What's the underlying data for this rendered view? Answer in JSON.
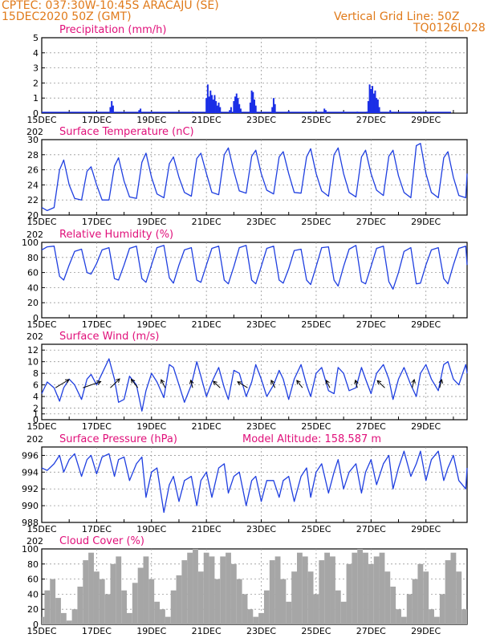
{
  "header": {
    "line1": "CPTEC:   037:30W-10:45S   ARACAJU (SE)",
    "line2": "15DEC2020 50Z (GMT)",
    "grid_note": "Vertical Grid Line: 50Z",
    "code": "TQ0126L028",
    "year_stub": "202"
  },
  "colors": {
    "header": "#e07a1a",
    "title": "#e0107a",
    "line": "#1f3fe0",
    "bar": "#1a2ee6",
    "cloud": "#a6a6a6",
    "arrow": "#000000"
  },
  "x_labels": [
    "15DEC",
    "17DEC",
    "19DEC",
    "21DEC",
    "23DEC",
    "25DEC",
    "27DEC",
    "29DEC"
  ],
  "chart_data": [
    {
      "id": "precip",
      "type": "bar",
      "title": "Precipitation (mm/h)",
      "x_unit": "days since 15DEC 00Z",
      "xlim": [
        0,
        15.5
      ],
      "ylim": [
        0,
        5
      ],
      "yticks": [
        0,
        1,
        2,
        3,
        4,
        5
      ],
      "x": [
        2.5,
        2.55,
        2.6,
        3.55,
        3.6,
        4.0,
        5.5,
        6.0,
        6.05,
        6.1,
        6.15,
        6.2,
        6.25,
        6.3,
        6.35,
        6.4,
        6.45,
        6.5,
        6.85,
        6.9,
        7.0,
        7.05,
        7.1,
        7.15,
        7.2,
        7.25,
        7.6,
        7.65,
        7.7,
        7.75,
        7.8,
        8.4,
        8.45,
        8.5,
        9.0,
        9.8,
        10.3,
        10.35,
        11.0,
        11.5,
        11.85,
        11.9,
        11.95,
        12.0,
        12.05,
        12.1,
        12.15,
        12.2,
        12.25,
        12.3,
        12.7
      ],
      "values": [
        0.4,
        0.8,
        0.5,
        0.2,
        0.3,
        0.1,
        0.1,
        1.0,
        1.9,
        1.1,
        1.5,
        1.2,
        0.9,
        1.2,
        0.8,
        0.5,
        0.7,
        0.4,
        0.2,
        0.4,
        0.8,
        1.1,
        1.3,
        1.0,
        0.6,
        0.3,
        0.7,
        1.5,
        1.4,
        0.9,
        0.5,
        0.4,
        1.0,
        0.6,
        0.15,
        0.1,
        0.3,
        0.2,
        0.1,
        0.1,
        0.1,
        0.8,
        1.9,
        1.6,
        1.8,
        1.3,
        1.5,
        1.0,
        0.9,
        0.4,
        0.2
      ]
    },
    {
      "id": "temp",
      "type": "line",
      "title": "Surface Temperature (nC)",
      "xlim": [
        0,
        15.5
      ],
      "ylim": [
        20,
        30
      ],
      "yticks": [
        20,
        22,
        24,
        26,
        28,
        30
      ],
      "x": [
        0,
        0.2,
        0.45,
        0.65,
        0.8,
        1,
        1.2,
        1.45,
        1.65,
        1.8,
        2,
        2.2,
        2.45,
        2.65,
        2.8,
        3,
        3.2,
        3.45,
        3.65,
        3.8,
        4,
        4.2,
        4.45,
        4.65,
        4.8,
        5,
        5.2,
        5.45,
        5.65,
        5.8,
        6,
        6.2,
        6.45,
        6.65,
        6.8,
        7,
        7.2,
        7.45,
        7.65,
        7.8,
        8,
        8.2,
        8.45,
        8.65,
        8.8,
        9,
        9.2,
        9.45,
        9.65,
        9.8,
        10,
        10.2,
        10.45,
        10.65,
        10.8,
        11,
        11.2,
        11.45,
        11.65,
        11.8,
        12,
        12.2,
        12.45,
        12.65,
        12.8,
        13,
        13.2,
        13.45,
        13.65,
        13.8,
        14,
        14.2,
        14.45,
        14.65,
        14.8,
        15,
        15.2,
        15.45,
        15.5
      ],
      "values": [
        21,
        20.6,
        21,
        26,
        27.3,
        24,
        22.2,
        22,
        25.8,
        26.4,
        24,
        22,
        22,
        26.5,
        27.6,
        24.5,
        22.4,
        22.2,
        27,
        28.2,
        25,
        22.8,
        22.3,
        26.8,
        27.7,
        25,
        23,
        22.5,
        27.5,
        28.2,
        25.5,
        23,
        22.7,
        28,
        28.9,
        25.8,
        23.2,
        22.9,
        27.8,
        28.6,
        25.5,
        23.3,
        22.8,
        27.7,
        28.4,
        25.5,
        23,
        22.9,
        27.7,
        28.8,
        25.5,
        23.2,
        22.5,
        28,
        28.9,
        25.5,
        23,
        22.4,
        27.7,
        28.6,
        25.5,
        23.3,
        22.6,
        27.8,
        28.6,
        25.2,
        23,
        22.3,
        29.2,
        29.5,
        25.5,
        23,
        22.3,
        27.6,
        28.4,
        25,
        22.6,
        22.3,
        25.5
      ]
    },
    {
      "id": "rh",
      "type": "line",
      "title": "Relative Humidity (%)",
      "xlim": [
        0,
        15.5
      ],
      "ylim": [
        0,
        100
      ],
      "yticks": [
        0,
        20,
        40,
        60,
        80,
        100
      ],
      "x": [
        0,
        0.2,
        0.45,
        0.65,
        0.8,
        1,
        1.2,
        1.45,
        1.65,
        1.8,
        2,
        2.2,
        2.45,
        2.65,
        2.8,
        3,
        3.2,
        3.45,
        3.65,
        3.8,
        4,
        4.2,
        4.45,
        4.65,
        4.8,
        5,
        5.2,
        5.45,
        5.65,
        5.8,
        6,
        6.2,
        6.45,
        6.65,
        6.8,
        7,
        7.2,
        7.45,
        7.65,
        7.8,
        8,
        8.2,
        8.45,
        8.65,
        8.8,
        9,
        9.2,
        9.45,
        9.65,
        9.8,
        10,
        10.2,
        10.45,
        10.65,
        10.8,
        11,
        11.2,
        11.45,
        11.65,
        11.8,
        12,
        12.2,
        12.45,
        12.65,
        12.8,
        13,
        13.2,
        13.45,
        13.65,
        13.8,
        14,
        14.2,
        14.45,
        14.65,
        14.8,
        15,
        15.2,
        15.45,
        15.5
      ],
      "values": [
        90,
        94,
        95,
        55,
        50,
        70,
        88,
        91,
        60,
        58,
        72,
        90,
        93,
        52,
        50,
        70,
        92,
        95,
        52,
        47,
        70,
        93,
        96,
        53,
        46,
        70,
        90,
        93,
        50,
        47,
        70,
        92,
        95,
        50,
        45,
        68,
        93,
        96,
        50,
        45,
        68,
        92,
        95,
        50,
        46,
        65,
        89,
        91,
        50,
        44,
        68,
        93,
        94,
        50,
        42,
        68,
        91,
        96,
        48,
        45,
        68,
        92,
        95,
        48,
        38,
        60,
        88,
        93,
        45,
        46,
        70,
        90,
        93,
        52,
        45,
        70,
        92,
        95,
        70
      ]
    },
    {
      "id": "wind",
      "type": "line",
      "title": "Surface Wind (m/s)",
      "xlim": [
        0,
        15.5
      ],
      "ylim": [
        0,
        13
      ],
      "yticks": [
        0,
        1,
        2,
        4,
        6,
        8,
        10,
        12
      ],
      "x": [
        0,
        0.2,
        0.45,
        0.65,
        0.8,
        1,
        1.2,
        1.45,
        1.65,
        1.8,
        2,
        2.2,
        2.45,
        2.65,
        2.8,
        3,
        3.2,
        3.45,
        3.65,
        3.8,
        4,
        4.2,
        4.45,
        4.65,
        4.8,
        5,
        5.2,
        5.45,
        5.65,
        5.8,
        6,
        6.2,
        6.45,
        6.65,
        6.8,
        7,
        7.2,
        7.45,
        7.65,
        7.8,
        8,
        8.2,
        8.45,
        8.65,
        8.8,
        9,
        9.2,
        9.45,
        9.65,
        9.8,
        10,
        10.2,
        10.45,
        10.65,
        10.8,
        11,
        11.2,
        11.45,
        11.65,
        11.8,
        12,
        12.2,
        12.45,
        12.65,
        12.8,
        13,
        13.2,
        13.45,
        13.65,
        13.8,
        14,
        14.2,
        14.45,
        14.65,
        14.8,
        15,
        15.2,
        15.45,
        15.5
      ],
      "values": [
        4.5,
        6.5,
        5.5,
        3.2,
        5.5,
        7,
        6,
        3.5,
        7,
        7.8,
        6,
        8,
        10.5,
        7,
        3,
        3.5,
        7.5,
        6,
        1.5,
        5,
        8,
        6.5,
        3.8,
        9.5,
        9,
        6,
        3,
        6,
        10,
        7.5,
        4,
        6.5,
        9,
        5.5,
        3.5,
        8.5,
        8,
        4,
        6.5,
        9.5,
        7,
        4,
        6,
        8.5,
        7,
        3.5,
        7,
        9.5,
        6,
        4,
        8,
        9,
        5,
        4.5,
        9,
        8,
        5,
        5.5,
        9,
        7,
        4.5,
        8,
        9.5,
        7,
        3.5,
        7,
        9,
        6,
        4,
        8,
        9.5,
        7,
        5,
        9.5,
        10,
        7,
        6,
        9.5,
        8
      ],
      "arrows": [
        {
          "x": 0.5,
          "speed": 7.5,
          "dir": 120
        },
        {
          "x": 1.5,
          "speed": 7.0,
          "dir": 135
        },
        {
          "x": 2.5,
          "speed": 7.5,
          "dir": 110
        },
        {
          "x": 3.5,
          "speed": 7.0,
          "dir": 75
        },
        {
          "x": 4.5,
          "speed": 6.5,
          "dir": 80
        },
        {
          "x": 5.5,
          "speed": 6.0,
          "dir": 85
        },
        {
          "x": 6.5,
          "speed": 5.5,
          "dir": 70
        },
        {
          "x": 7.5,
          "speed": 5.5,
          "dir": 60
        },
        {
          "x": 8.5,
          "speed": 6.0,
          "dir": 80
        },
        {
          "x": 9.5,
          "speed": 6.0,
          "dir": 75
        },
        {
          "x": 10.5,
          "speed": 6.0,
          "dir": 80
        },
        {
          "x": 11.5,
          "speed": 6.0,
          "dir": 85
        },
        {
          "x": 12.5,
          "speed": 6.0,
          "dir": 70
        },
        {
          "x": 13.5,
          "speed": 6.5,
          "dir": 95
        },
        {
          "x": 14.5,
          "speed": 6.5,
          "dir": 95
        }
      ]
    },
    {
      "id": "press",
      "type": "line",
      "title": "Surface Pressure (hPa)",
      "subtitle": "Model Altitude: 158.587 m",
      "xlim": [
        0,
        15.5
      ],
      "ylim": [
        988,
        997
      ],
      "yticks": [
        988,
        990,
        992,
        994,
        996
      ],
      "x": [
        0,
        0.2,
        0.45,
        0.65,
        0.8,
        1,
        1.2,
        1.45,
        1.65,
        1.8,
        2,
        2.2,
        2.45,
        2.65,
        2.8,
        3,
        3.2,
        3.45,
        3.65,
        3.8,
        4,
        4.2,
        4.45,
        4.65,
        4.8,
        5,
        5.2,
        5.45,
        5.65,
        5.8,
        6,
        6.2,
        6.45,
        6.65,
        6.8,
        7,
        7.2,
        7.45,
        7.65,
        7.8,
        8,
        8.2,
        8.45,
        8.65,
        8.8,
        9,
        9.2,
        9.45,
        9.65,
        9.8,
        10,
        10.2,
        10.45,
        10.65,
        10.8,
        11,
        11.2,
        11.45,
        11.65,
        11.8,
        12,
        12.2,
        12.45,
        12.65,
        12.8,
        13,
        13.2,
        13.45,
        13.65,
        13.8,
        14,
        14.2,
        14.45,
        14.65,
        14.8,
        15,
        15.2,
        15.45,
        15.5
      ],
      "values": [
        994.5,
        994.2,
        995,
        996,
        994,
        995.5,
        996.2,
        993.5,
        995.5,
        996,
        993.8,
        995.8,
        996.2,
        993.5,
        995.5,
        995.8,
        993,
        995,
        995.8,
        991,
        994,
        994.5,
        989.2,
        992.5,
        993.5,
        990.5,
        993,
        993.5,
        990,
        993,
        994,
        991,
        994.5,
        995,
        991.5,
        993.5,
        994,
        990,
        993,
        993.5,
        990.5,
        993,
        993,
        991,
        993,
        993.5,
        990.5,
        993.5,
        994.5,
        991,
        994,
        995,
        991.5,
        994,
        995.5,
        992,
        994,
        995,
        991.5,
        994,
        995.5,
        992.5,
        995,
        996,
        992,
        994.5,
        996.5,
        993.5,
        995,
        996.5,
        993,
        995.5,
        996.5,
        993,
        994.5,
        996,
        993,
        992,
        994.5
      ]
    },
    {
      "id": "cloud",
      "type": "area",
      "title": "Cloud Cover (%)",
      "xlim": [
        0,
        15.5
      ],
      "ylim": [
        0,
        100
      ],
      "yticks": [
        0,
        20,
        40,
        60,
        80,
        100
      ],
      "x": [
        0,
        0.1,
        0.3,
        0.5,
        0.7,
        0.9,
        1.1,
        1.3,
        1.5,
        1.7,
        1.9,
        2.1,
        2.3,
        2.5,
        2.7,
        2.9,
        3.1,
        3.3,
        3.5,
        3.7,
        3.9,
        4.1,
        4.3,
        4.5,
        4.7,
        4.9,
        5.1,
        5.3,
        5.5,
        5.7,
        5.9,
        6.1,
        6.3,
        6.5,
        6.7,
        6.9,
        7.1,
        7.3,
        7.5,
        7.7,
        7.9,
        8.1,
        8.3,
        8.5,
        8.7,
        8.9,
        9.1,
        9.3,
        9.5,
        9.7,
        9.9,
        10.1,
        10.3,
        10.5,
        10.7,
        10.9,
        11.1,
        11.3,
        11.5,
        11.7,
        11.9,
        12.1,
        12.3,
        12.5,
        12.7,
        12.9,
        13.1,
        13.3,
        13.5,
        13.7,
        13.9,
        14.1,
        14.3,
        14.5,
        14.7,
        14.9,
        15.1,
        15.3,
        15.5
      ],
      "values": [
        10,
        45,
        60,
        35,
        15,
        5,
        20,
        50,
        85,
        95,
        70,
        60,
        40,
        80,
        90,
        45,
        15,
        55,
        75,
        90,
        60,
        30,
        20,
        10,
        45,
        65,
        85,
        95,
        100,
        70,
        95,
        90,
        60,
        90,
        95,
        80,
        60,
        40,
        20,
        10,
        15,
        45,
        85,
        90,
        60,
        30,
        70,
        95,
        90,
        70,
        40,
        85,
        95,
        90,
        45,
        30,
        80,
        95,
        100,
        95,
        80,
        90,
        95,
        70,
        50,
        20,
        10,
        40,
        60,
        80,
        70,
        20,
        10,
        40,
        85,
        95,
        70,
        20,
        5
      ]
    }
  ]
}
